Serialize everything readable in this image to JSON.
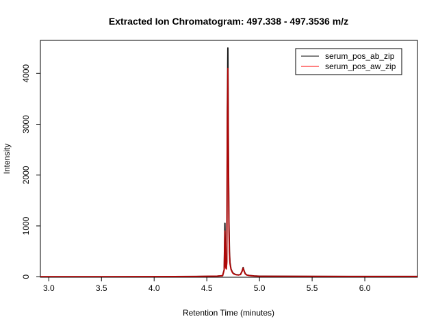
{
  "chart_data": {
    "type": "line",
    "title": "Extracted Ion Chromatogram: 497.338 - 497.3536 m/z",
    "xlabel": "Retention Time (minutes)",
    "ylabel": "Intensity",
    "xlim": [
      2.92,
      6.5
    ],
    "ylim": [
      -10,
      4650
    ],
    "xticks": [
      3.0,
      3.5,
      4.0,
      4.5,
      5.0,
      5.5,
      6.0
    ],
    "xtick_labels": [
      "3.0",
      "3.5",
      "4.0",
      "4.5",
      "5.0",
      "5.5",
      "6.0"
    ],
    "yticks": [
      0,
      1000,
      2000,
      3000,
      4000
    ],
    "ytick_labels": [
      "0",
      "1000",
      "2000",
      "3000",
      "4000"
    ],
    "grid": false,
    "legend_position": "top-right",
    "series": [
      {
        "name": "serum_pos_ab_zip",
        "color": "#000000",
        "x": [
          2.92,
          3.5,
          4.0,
          4.4,
          4.6,
          4.65,
          4.665,
          4.672,
          4.678,
          4.685,
          4.69,
          4.695,
          4.7,
          4.705,
          4.71,
          4.715,
          4.72,
          4.73,
          4.745,
          4.76,
          4.78,
          4.8,
          4.82,
          4.835,
          4.845,
          4.855,
          4.865,
          4.88,
          4.9,
          4.95,
          5.0,
          5.5,
          6.0,
          6.5
        ],
        "y": [
          0,
          0,
          2,
          5,
          12,
          20,
          140,
          1050,
          200,
          160,
          300,
          3250,
          4500,
          2500,
          1100,
          500,
          280,
          150,
          80,
          55,
          40,
          35,
          45,
          110,
          180,
          110,
          60,
          35,
          25,
          15,
          10,
          6,
          5,
          5
        ]
      },
      {
        "name": "serum_pos_aw_zip",
        "color": "#ff0000",
        "x": [
          2.92,
          3.5,
          4.0,
          4.4,
          4.6,
          4.65,
          4.665,
          4.672,
          4.678,
          4.685,
          4.69,
          4.695,
          4.7,
          4.705,
          4.71,
          4.715,
          4.72,
          4.73,
          4.745,
          4.76,
          4.78,
          4.8,
          4.82,
          4.835,
          4.845,
          4.855,
          4.865,
          4.88,
          4.9,
          4.95,
          5.0,
          5.5,
          6.0,
          6.5
        ],
        "y": [
          0,
          0,
          2,
          5,
          12,
          20,
          130,
          900,
          180,
          150,
          280,
          3000,
          4100,
          2300,
          950,
          450,
          250,
          140,
          75,
          50,
          38,
          33,
          42,
          105,
          170,
          105,
          55,
          33,
          23,
          14,
          9,
          6,
          5,
          5
        ]
      }
    ]
  }
}
